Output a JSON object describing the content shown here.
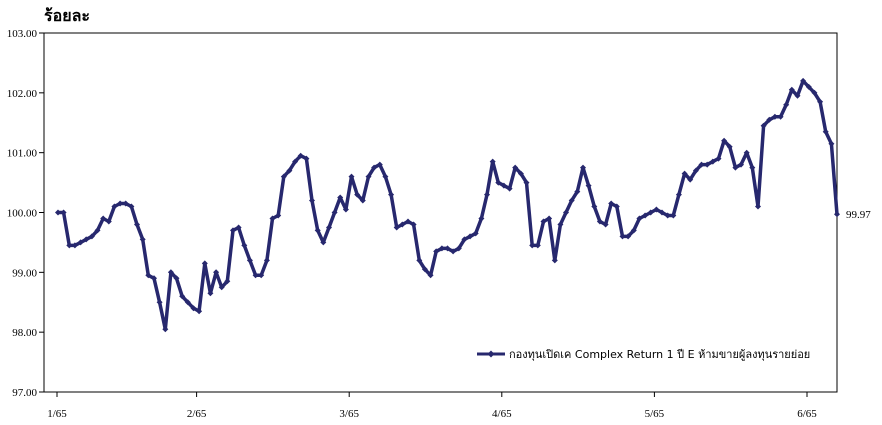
{
  "chart_data": {
    "type": "line",
    "ylabel": "ร้อยละ",
    "ylim": [
      97,
      103
    ],
    "y_ticks": [
      "97.00",
      "98.00",
      "99.00",
      "100.00",
      "101.00",
      "102.00",
      "103.00"
    ],
    "x_ticks": [
      "1/65",
      "2/65",
      "3/65",
      "4/65",
      "5/65",
      "6/65"
    ],
    "grid": false,
    "legend_position": "bottom-right",
    "end_label": "99.97",
    "series": [
      {
        "name": "กองทุนเปิดเค Complex Return 1 ปี E ห้ามขายผู้ลงทุนรายย่อย",
        "color": "#27286e",
        "values": [
          100.0,
          100.0,
          99.45,
          99.45,
          99.5,
          99.55,
          99.6,
          99.7,
          99.9,
          99.85,
          100.1,
          100.15,
          100.15,
          100.1,
          99.8,
          99.55,
          98.95,
          98.9,
          98.5,
          98.05,
          99.0,
          98.9,
          98.6,
          98.5,
          98.4,
          98.35,
          99.15,
          98.65,
          99.0,
          98.75,
          98.85,
          99.7,
          99.75,
          99.45,
          99.2,
          98.95,
          98.95,
          99.2,
          99.9,
          99.95,
          100.6,
          100.7,
          100.85,
          100.95,
          100.9,
          100.2,
          99.7,
          99.5,
          99.75,
          100.0,
          100.25,
          100.05,
          100.6,
          100.3,
          100.2,
          100.6,
          100.75,
          100.8,
          100.6,
          100.3,
          99.75,
          99.8,
          99.85,
          99.8,
          99.2,
          99.05,
          98.95,
          99.35,
          99.4,
          99.4,
          99.35,
          99.4,
          99.55,
          99.6,
          99.65,
          99.9,
          100.3,
          100.85,
          100.5,
          100.45,
          100.4,
          100.75,
          100.65,
          100.5,
          99.45,
          99.45,
          99.85,
          99.9,
          99.2,
          99.8,
          100.0,
          100.2,
          100.35,
          100.75,
          100.45,
          100.1,
          99.85,
          99.8,
          100.15,
          100.1,
          99.6,
          99.6,
          99.7,
          99.9,
          99.95,
          100.0,
          100.05,
          100.0,
          99.95,
          99.95,
          100.3,
          100.65,
          100.55,
          100.7,
          100.8,
          100.8,
          100.85,
          100.9,
          101.2,
          101.1,
          100.75,
          100.8,
          101.0,
          100.75,
          100.1,
          101.45,
          101.55,
          101.6,
          101.6,
          101.8,
          102.05,
          101.95,
          102.2,
          102.1,
          102.0,
          101.85,
          101.35,
          101.15,
          99.97
        ]
      }
    ]
  }
}
